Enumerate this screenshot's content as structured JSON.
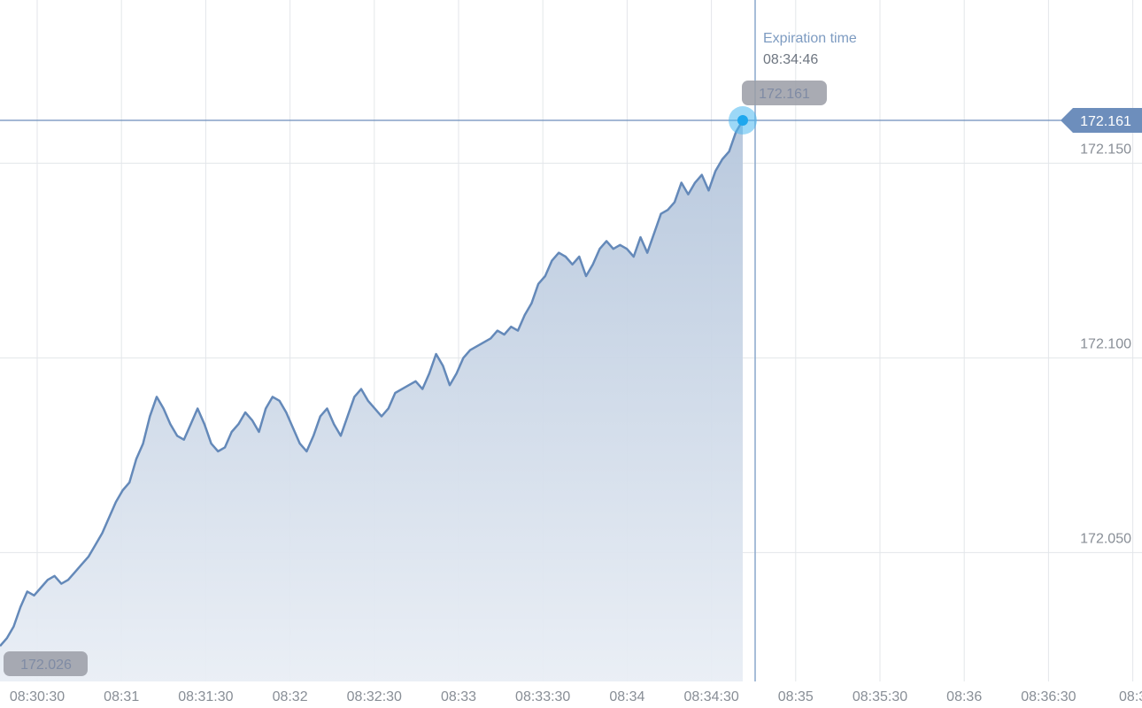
{
  "chart_data": {
    "type": "area",
    "x_ticks": [
      "08:30:30",
      "08:31",
      "08:31:30",
      "08:32",
      "08:32:30",
      "08:33",
      "08:33:30",
      "08:34",
      "08:34:30",
      "08:35",
      "08:35:30",
      "08:36",
      "08:36:30",
      "08:3"
    ],
    "y_ticks": [
      "172.150",
      "172.100",
      "172.050"
    ],
    "ylim": [
      172.026,
      172.161
    ],
    "grid": true,
    "current_price_label": "172.161",
    "current_point_label": "172.161",
    "low_label": "172.026",
    "expiration": {
      "title": "Expiration time",
      "time": "08:34:46"
    },
    "colors": {
      "line": "#6489b9",
      "fill": "#c6d3e4",
      "marker": "#1ea7ee",
      "price_tag": "#6d8ebc",
      "bubble": "#9a9ca6"
    },
    "series": [
      {
        "values": [
          172.026,
          172.028,
          172.031,
          172.036,
          172.04,
          172.039,
          172.041,
          172.043,
          172.044,
          172.042,
          172.043,
          172.045,
          172.047,
          172.049,
          172.052,
          172.055,
          172.059,
          172.063,
          172.066,
          172.068,
          172.074,
          172.078,
          172.085,
          172.09,
          172.087,
          172.083,
          172.08,
          172.079,
          172.083,
          172.087,
          172.083,
          172.078,
          172.076,
          172.077,
          172.081,
          172.083,
          172.086,
          172.084,
          172.081,
          172.087,
          172.09,
          172.089,
          172.086,
          172.082,
          172.078,
          172.076,
          172.08,
          172.085,
          172.087,
          172.083,
          172.08,
          172.085,
          172.09,
          172.092,
          172.089,
          172.087,
          172.085,
          172.087,
          172.091,
          172.092,
          172.093,
          172.094,
          172.092,
          172.096,
          172.101,
          172.098,
          172.093,
          172.096,
          172.1,
          172.102,
          172.103,
          172.104,
          172.105,
          172.107,
          172.106,
          172.108,
          172.107,
          172.111,
          172.114,
          172.119,
          172.121,
          172.125,
          172.127,
          172.126,
          172.124,
          172.126,
          172.121,
          172.124,
          172.128,
          172.13,
          172.128,
          172.129,
          172.128,
          172.126,
          172.131,
          172.127,
          172.132,
          172.137,
          172.138,
          172.14,
          172.145,
          172.142,
          172.145,
          172.147,
          172.143,
          172.148,
          172.151,
          172.153,
          172.158,
          172.161
        ]
      }
    ]
  }
}
